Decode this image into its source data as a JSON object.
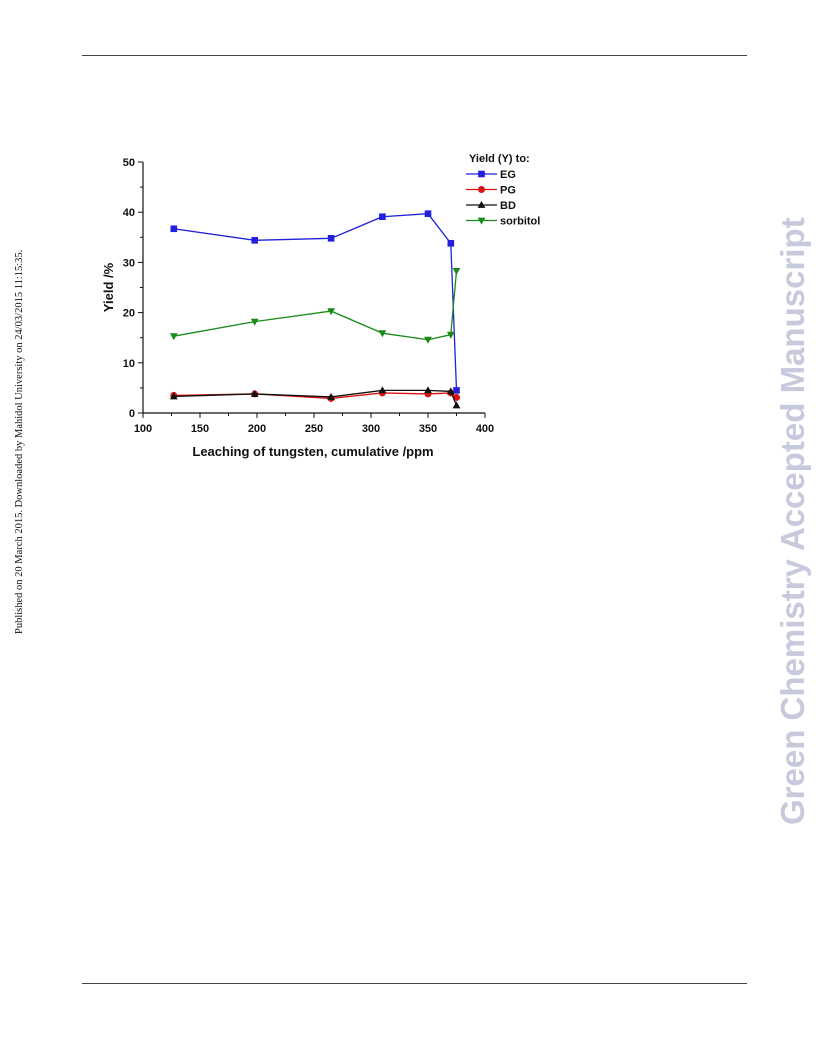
{
  "page": {
    "side_left_text": "Published on 20 March 2015. Downloaded by Mahidol University on 24/03/2015 11:15:35.",
    "side_right_text": "Green Chemistry Accepted Manuscript"
  },
  "chart_data": {
    "type": "line",
    "title": "",
    "xlabel": "Leaching of tungsten, cumulative /ppm",
    "ylabel": "Yield /%",
    "xlim": [
      100,
      400
    ],
    "ylim": [
      0,
      50
    ],
    "xticks": [
      100,
      150,
      200,
      250,
      300,
      350,
      400
    ],
    "yticks": [
      0,
      10,
      20,
      30,
      40,
      50
    ],
    "grid": false,
    "legend": {
      "title": "Yield (Y) to:",
      "position": "top-right"
    },
    "series": [
      {
        "name": "EG",
        "color": "#2020dd",
        "marker": "square",
        "x": [
          127,
          198,
          265,
          310,
          350,
          370,
          375
        ],
        "y": [
          36.7,
          34.4,
          34.8,
          39.1,
          39.7,
          33.8,
          4.5
        ]
      },
      {
        "name": "PG",
        "color": "#dd1111",
        "marker": "circle",
        "x": [
          127,
          198,
          265,
          310,
          350,
          370,
          375
        ],
        "y": [
          3.5,
          3.8,
          2.9,
          4.0,
          3.8,
          4.0,
          3.1
        ]
      },
      {
        "name": "BD",
        "color": "#111111",
        "marker": "triangle-up",
        "x": [
          127,
          198,
          265,
          310,
          350,
          370,
          375
        ],
        "y": [
          3.3,
          3.8,
          3.2,
          4.5,
          4.5,
          4.3,
          1.5
        ]
      },
      {
        "name": "sorbitol",
        "color": "#1a8a1a",
        "marker": "triangle-down",
        "x": [
          127,
          198,
          265,
          310,
          350,
          370,
          375
        ],
        "y": [
          15.3,
          18.2,
          20.3,
          15.9,
          14.6,
          15.6,
          28.3
        ]
      }
    ]
  }
}
